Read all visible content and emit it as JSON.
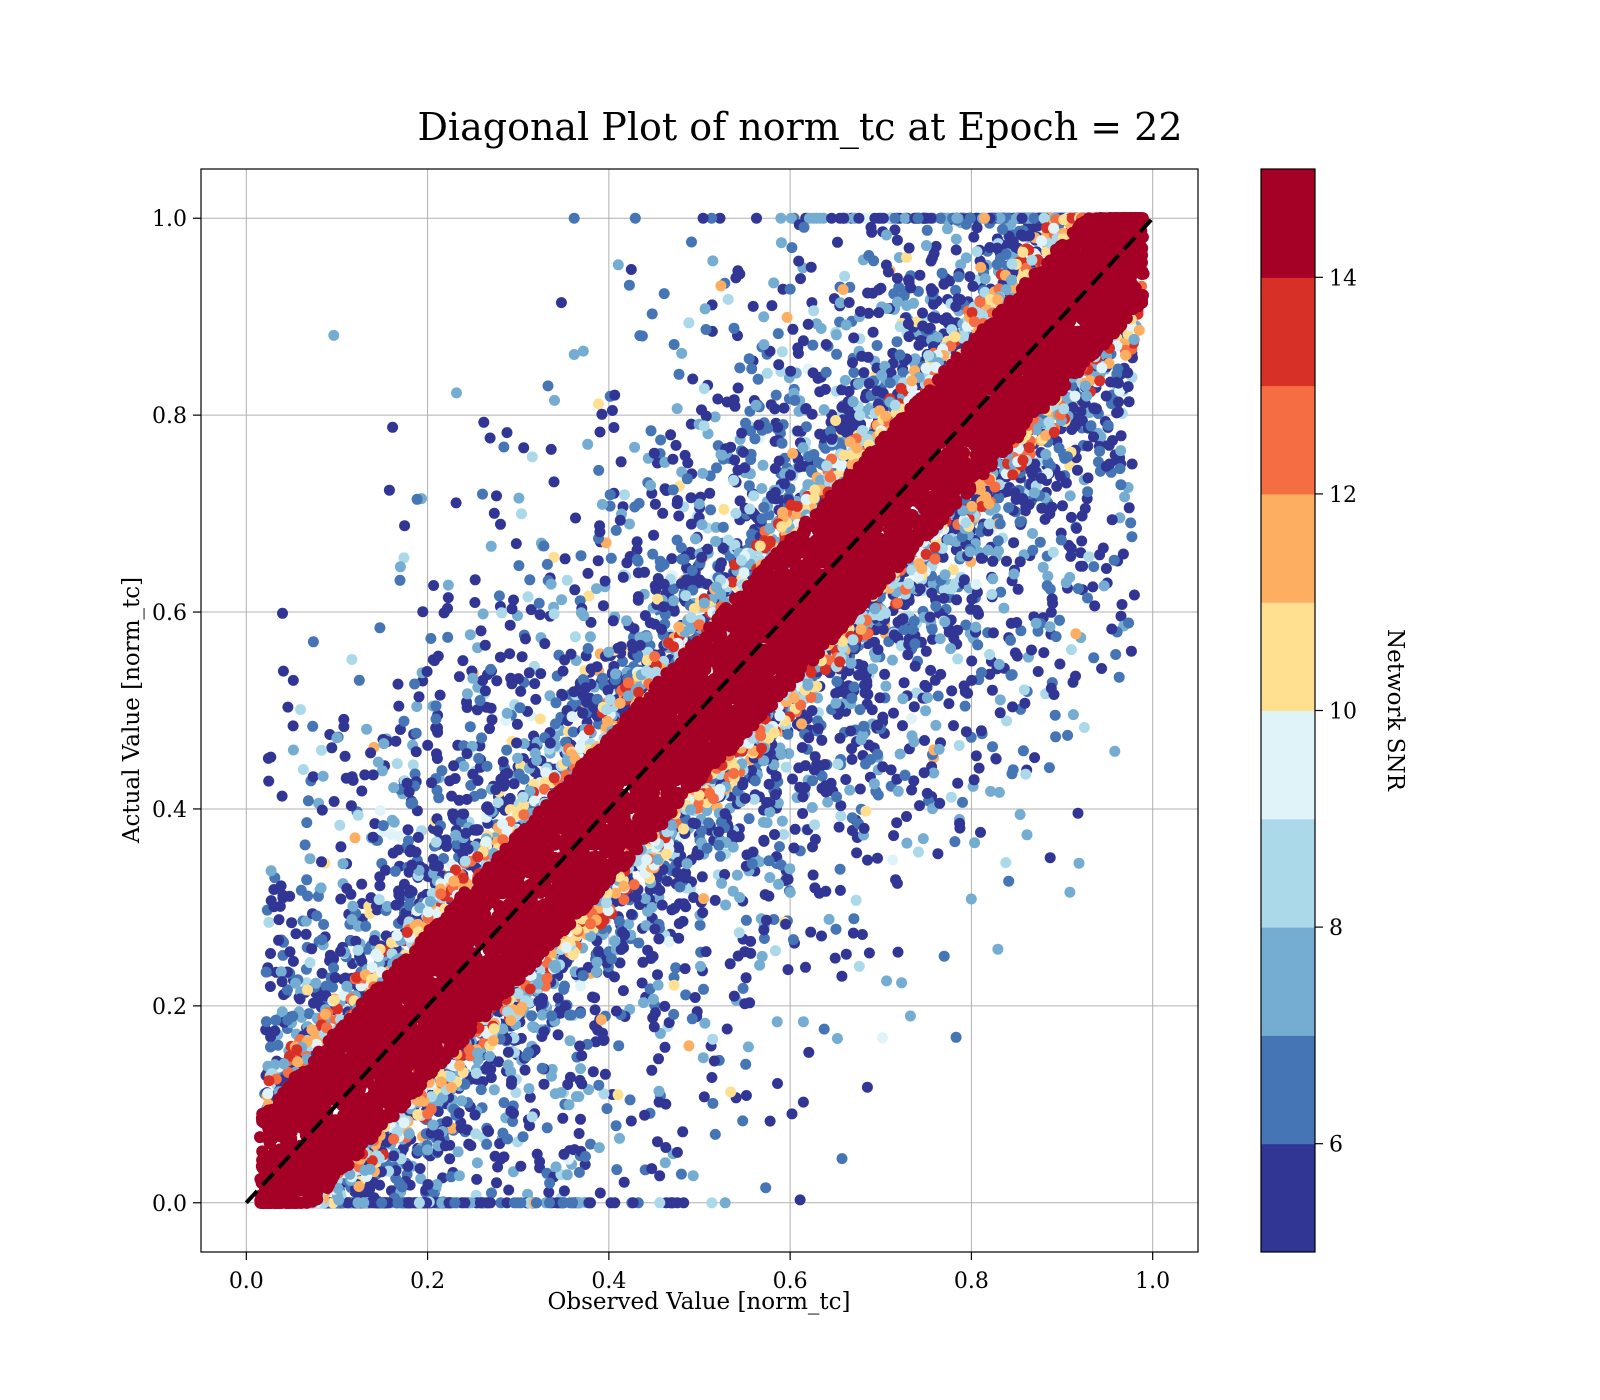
{
  "chart_data": {
    "type": "scatter",
    "title": "Diagonal Plot of norm_tc at Epoch = 22",
    "xlabel": "Observed Value [norm_tc]",
    "ylabel": "Actual Value [norm_tc]",
    "xlim": [
      -0.05,
      1.05
    ],
    "ylim": [
      -0.05,
      1.05
    ],
    "xticks": [
      "0.0",
      "0.2",
      "0.4",
      "0.6",
      "0.8",
      "1.0"
    ],
    "yticks": [
      "0.0",
      "0.2",
      "0.4",
      "0.6",
      "0.8",
      "1.0"
    ],
    "grid": true,
    "reference_line": {
      "style": "dashed",
      "color": "#000000",
      "from": [
        0,
        0
      ],
      "to": [
        1,
        1
      ]
    },
    "colorbar": {
      "label": "Network SNR",
      "range": [
        5,
        15
      ],
      "ticks": [
        "6",
        "8",
        "10",
        "12",
        "14"
      ],
      "tick_values": [
        6,
        8,
        10,
        12,
        14
      ],
      "bins": [
        5,
        6,
        7,
        8,
        9,
        10,
        11,
        12,
        13,
        14,
        15
      ],
      "colors": [
        "#313695",
        "#4575b4",
        "#74add1",
        "#abd9e9",
        "#e0f3f8",
        "#fee090",
        "#fdae61",
        "#f46d43",
        "#d73027",
        "#a50026"
      ]
    },
    "points_summary": {
      "high_snr_band": "points with SNR > 14 lie within about ±0.08 of the diagonal",
      "low_snr_scatter": "lower SNR points spread widely in the region between y = x - 0.6 and y = x + 0.9"
    }
  }
}
